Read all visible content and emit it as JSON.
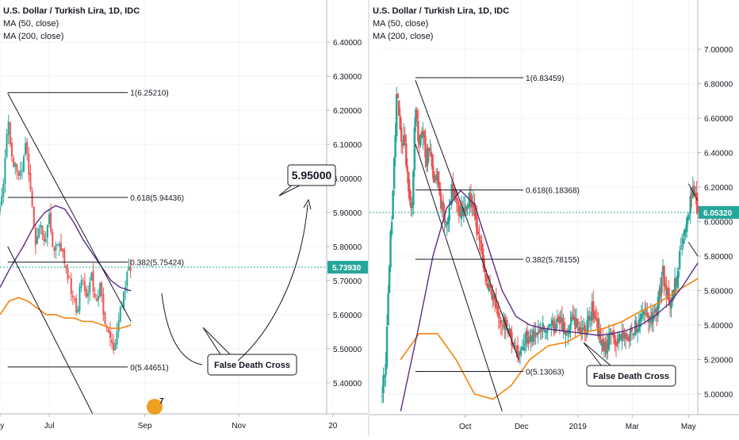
{
  "colors": {
    "up": "#26a69a",
    "down": "#ef5350",
    "ma50": "#5b2a86",
    "ma200": "#f5820a",
    "trendline": "#131722",
    "last_price_badge": "#26a69a",
    "axis_text": "#131722",
    "grid": "#f0f3fa"
  },
  "chart_data": [
    {
      "type": "candlestick",
      "title": "U.S. Dollar / Turkish Lira, 1D, IDC",
      "indicators": [
        "MA (50, close)",
        "MA (200, close)"
      ],
      "y_ticks": [
        "6.40000",
        "6.30000",
        "6.20000",
        "6.10000",
        "6.00000",
        "5.90000",
        "5.80000",
        "5.70000",
        "5.60000",
        "5.50000",
        "5.40000"
      ],
      "ylim": [
        5.36,
        6.44
      ],
      "x_ticks": [
        {
          "label": "ay",
          "day": 0
        },
        {
          "label": "Jul",
          "day": 32
        },
        {
          "label": "Sep",
          "day": 94
        },
        {
          "label": "Nov",
          "day": 155
        },
        {
          "label": "20",
          "day": 216
        }
      ],
      "xlim": [
        0,
        212
      ],
      "last_price": "5.73930",
      "price_target": "5.95000",
      "annotation": "False Death Cross",
      "fib_levels": [
        {
          "label": "1(6.25210)",
          "value": 6.2521
        },
        {
          "label": "0.618(5.94436)",
          "value": 5.94436
        },
        {
          "label": "0.382(5.75424)",
          "value": 5.75424
        },
        {
          "label": "0(5.44651)",
          "value": 5.44651
        }
      ],
      "watermark": "7",
      "price_path": [
        [
          0,
          5.91
        ],
        [
          3,
          6.02
        ],
        [
          5,
          6.18
        ],
        [
          8,
          6.06
        ],
        [
          11,
          6.02
        ],
        [
          14,
          6.03
        ],
        [
          17,
          6.1
        ],
        [
          20,
          5.95
        ],
        [
          23,
          5.8
        ],
        [
          26,
          5.86
        ],
        [
          29,
          5.82
        ],
        [
          32,
          5.9
        ],
        [
          35,
          5.78
        ],
        [
          38,
          5.8
        ],
        [
          41,
          5.77
        ],
        [
          44,
          5.72
        ],
        [
          47,
          5.66
        ],
        [
          50,
          5.6
        ],
        [
          53,
          5.72
        ],
        [
          56,
          5.64
        ],
        [
          59,
          5.72
        ],
        [
          62,
          5.62
        ],
        [
          65,
          5.7
        ],
        [
          68,
          5.58
        ],
        [
          71,
          5.53
        ],
        [
          74,
          5.5
        ],
        [
          77,
          5.58
        ],
        [
          80,
          5.66
        ],
        [
          83,
          5.73
        ],
        [
          85,
          5.74
        ]
      ],
      "ma50": [
        [
          0,
          5.68
        ],
        [
          7,
          5.74
        ],
        [
          15,
          5.8
        ],
        [
          22,
          5.86
        ],
        [
          29,
          5.9
        ],
        [
          36,
          5.92
        ],
        [
          42,
          5.91
        ],
        [
          48,
          5.87
        ],
        [
          54,
          5.82
        ],
        [
          60,
          5.78
        ],
        [
          66,
          5.74
        ],
        [
          72,
          5.7
        ],
        [
          78,
          5.68
        ],
        [
          85,
          5.67
        ]
      ],
      "ma200": [
        [
          0,
          5.6
        ],
        [
          6,
          5.64
        ],
        [
          12,
          5.65
        ],
        [
          18,
          5.64
        ],
        [
          24,
          5.62
        ],
        [
          30,
          5.6
        ],
        [
          36,
          5.6
        ],
        [
          42,
          5.59
        ],
        [
          48,
          5.59
        ],
        [
          54,
          5.58
        ],
        [
          60,
          5.58
        ],
        [
          66,
          5.57
        ],
        [
          72,
          5.56
        ],
        [
          78,
          5.56
        ],
        [
          85,
          5.57
        ]
      ]
    },
    {
      "type": "candlestick",
      "title": "U.S. Dollar / Turkish Lira, 1D, IDC",
      "indicators": [
        "MA (50, close)",
        "MA (200, close)"
      ],
      "y_ticks": [
        "7.00000",
        "6.80000",
        "6.60000",
        "6.40000",
        "6.20000",
        "6.00000",
        "5.80000",
        "5.60000",
        "5.40000",
        "5.20000",
        "5.00000"
      ],
      "ylim": [
        4.94,
        7.12
      ],
      "x_ticks": [
        {
          "label": "Oct",
          "day": 90
        },
        {
          "label": "Dec",
          "day": 151
        },
        {
          "label": "2019",
          "day": 212
        },
        {
          "label": "Mar",
          "day": 271
        },
        {
          "label": "May",
          "day": 332
        }
      ],
      "xlim": [
        0,
        342
      ],
      "last_price": "6.05320",
      "annotation": "False Death Cross",
      "fib_levels": [
        {
          "label": "1(6.83459)",
          "value": 6.83459
        },
        {
          "label": "0.618(6.18368)",
          "value": 6.18368
        },
        {
          "label": "0.382(5.78155)",
          "value": 5.78155
        },
        {
          "label": "0(5.13063)",
          "value": 5.13063
        }
      ],
      "price_path": [
        [
          0,
          5.0
        ],
        [
          4,
          5.2
        ],
        [
          8,
          5.8
        ],
        [
          12,
          6.2
        ],
        [
          16,
          6.8
        ],
        [
          20,
          6.45
        ],
        [
          24,
          6.5
        ],
        [
          28,
          6.2
        ],
        [
          32,
          6.0
        ],
        [
          36,
          6.65
        ],
        [
          40,
          6.45
        ],
        [
          44,
          6.55
        ],
        [
          48,
          6.35
        ],
        [
          52,
          6.45
        ],
        [
          56,
          6.2
        ],
        [
          60,
          6.3
        ],
        [
          64,
          6.1
        ],
        [
          68,
          6.0
        ],
        [
          72,
          6.05
        ],
        [
          76,
          6.2
        ],
        [
          80,
          6.1
        ],
        [
          84,
          6.05
        ],
        [
          88,
          6.05
        ],
        [
          92,
          6.1
        ],
        [
          96,
          6.15
        ],
        [
          100,
          6.05
        ],
        [
          104,
          5.9
        ],
        [
          108,
          5.8
        ],
        [
          112,
          5.7
        ],
        [
          116,
          5.6
        ],
        [
          120,
          5.55
        ],
        [
          124,
          5.5
        ],
        [
          128,
          5.45
        ],
        [
          132,
          5.4
        ],
        [
          136,
          5.35
        ],
        [
          140,
          5.33
        ],
        [
          144,
          5.3
        ],
        [
          148,
          5.2
        ],
        [
          152,
          5.25
        ],
        [
          156,
          5.35
        ],
        [
          160,
          5.3
        ],
        [
          164,
          5.38
        ],
        [
          168,
          5.35
        ],
        [
          172,
          5.38
        ],
        [
          176,
          5.4
        ],
        [
          180,
          5.35
        ],
        [
          184,
          5.4
        ],
        [
          188,
          5.38
        ],
        [
          192,
          5.45
        ],
        [
          196,
          5.4
        ],
        [
          200,
          5.35
        ],
        [
          204,
          5.4
        ],
        [
          208,
          5.42
        ],
        [
          212,
          5.4
        ],
        [
          216,
          5.38
        ],
        [
          220,
          5.35
        ],
        [
          224,
          5.45
        ],
        [
          228,
          5.5
        ],
        [
          232,
          5.4
        ],
        [
          236,
          5.35
        ],
        [
          240,
          5.25
        ],
        [
          244,
          5.3
        ],
        [
          248,
          5.35
        ],
        [
          252,
          5.3
        ],
        [
          256,
          5.33
        ],
        [
          260,
          5.35
        ],
        [
          264,
          5.32
        ],
        [
          268,
          5.35
        ],
        [
          272,
          5.38
        ],
        [
          276,
          5.4
        ],
        [
          280,
          5.45
        ],
        [
          284,
          5.48
        ],
        [
          288,
          5.45
        ],
        [
          292,
          5.42
        ],
        [
          296,
          5.45
        ],
        [
          300,
          5.55
        ],
        [
          304,
          5.7
        ],
        [
          308,
          5.6
        ],
        [
          312,
          5.5
        ],
        [
          316,
          5.6
        ],
        [
          320,
          5.7
        ],
        [
          324,
          5.85
        ],
        [
          328,
          5.95
        ],
        [
          332,
          6.0
        ],
        [
          336,
          6.2
        ],
        [
          340,
          6.1
        ],
        [
          342,
          6.05
        ]
      ],
      "ma50": [
        [
          20,
          4.9
        ],
        [
          40,
          5.4
        ],
        [
          55,
          5.8
        ],
        [
          70,
          6.08
        ],
        [
          85,
          6.18
        ],
        [
          100,
          6.1
        ],
        [
          115,
          5.85
        ],
        [
          130,
          5.6
        ],
        [
          145,
          5.45
        ],
        [
          160,
          5.4
        ],
        [
          175,
          5.38
        ],
        [
          190,
          5.37
        ],
        [
          205,
          5.36
        ],
        [
          220,
          5.35
        ],
        [
          235,
          5.34
        ],
        [
          250,
          5.35
        ],
        [
          265,
          5.37
        ],
        [
          280,
          5.4
        ],
        [
          295,
          5.45
        ],
        [
          310,
          5.52
        ],
        [
          325,
          5.62
        ],
        [
          342,
          5.76
        ]
      ],
      "ma200": [
        [
          20,
          5.2
        ],
        [
          40,
          5.35
        ],
        [
          60,
          5.35
        ],
        [
          80,
          5.2
        ],
        [
          100,
          5.0
        ],
        [
          120,
          4.97
        ],
        [
          140,
          5.05
        ],
        [
          160,
          5.2
        ],
        [
          180,
          5.28
        ],
        [
          200,
          5.3
        ],
        [
          220,
          5.36
        ],
        [
          240,
          5.38
        ],
        [
          260,
          5.42
        ],
        [
          280,
          5.48
        ],
        [
          300,
          5.53
        ],
        [
          320,
          5.6
        ],
        [
          342,
          5.67
        ]
      ]
    }
  ]
}
